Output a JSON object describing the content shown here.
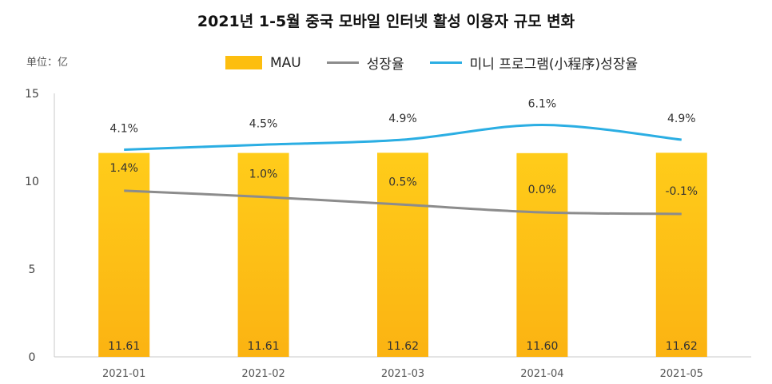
{
  "chart_data": {
    "type": "bar",
    "title": "2021년 1-5월 중국 모바일 인터넷 활성 이용자 규모 변화",
    "unit_label": "单位：亿",
    "categories": [
      "2021-01",
      "2021-02",
      "2021-03",
      "2021-04",
      "2021-05"
    ],
    "ylim": [
      0,
      15
    ],
    "yticks": [
      "0",
      "5",
      "10",
      "15"
    ],
    "grid": false,
    "legend_position": "top",
    "bar_series": {
      "name": "MAU",
      "values": [
        11.61,
        11.61,
        11.62,
        11.6,
        11.62
      ],
      "labels": [
        "11.61",
        "11.61",
        "11.62",
        "11.60",
        "11.62"
      ],
      "color": "#FDBE0F"
    },
    "line_series": [
      {
        "name": "성장율",
        "values": [
          1.4,
          1.0,
          0.5,
          0.0,
          -0.1
        ],
        "labels": [
          "1.4%",
          "1.0%",
          "0.5%",
          "0.0%",
          "-0.1%"
        ],
        "color": "#8C8C8C"
      },
      {
        "name": "미니 프로그램(小程序)성장율",
        "values": [
          4.1,
          4.5,
          4.9,
          6.1,
          4.9
        ],
        "labels": [
          "4.1%",
          "4.5%",
          "4.9%",
          "6.1%",
          "4.9%"
        ],
        "color": "#2BAEE3"
      }
    ]
  }
}
